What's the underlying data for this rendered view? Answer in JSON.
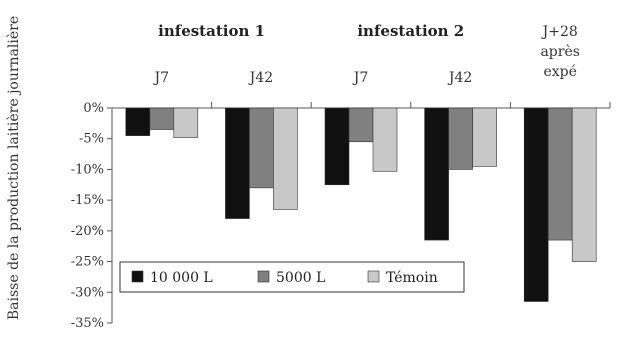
{
  "chart_data": {
    "type": "bar",
    "ylabel": "Baisse de la production laitière journalière",
    "ylim": [
      -35,
      0
    ],
    "ytick_step": 5,
    "ytick_suffix": "%",
    "group_labels": [
      {
        "text": "infestation 1",
        "span": [
          0,
          1
        ]
      },
      {
        "text": "infestation 2",
        "span": [
          2,
          3
        ]
      }
    ],
    "categories": [
      {
        "lines": [
          "J7"
        ]
      },
      {
        "lines": [
          "J42"
        ]
      },
      {
        "lines": [
          "J7"
        ]
      },
      {
        "lines": [
          "J42"
        ]
      },
      {
        "lines": [
          "J+28",
          "après",
          "expé"
        ]
      }
    ],
    "series": [
      {
        "name": "10 000 L",
        "color": "#111111",
        "values": [
          -4.5,
          -18.0,
          -12.5,
          -21.5,
          -31.5
        ]
      },
      {
        "name": "5000 L",
        "color": "#808080",
        "values": [
          -3.5,
          -13.0,
          -5.5,
          -10.0,
          -21.5
        ]
      },
      {
        "name": "Témoin",
        "color": "#c8c8c8",
        "values": [
          -4.8,
          -16.5,
          -10.3,
          -9.5,
          -25.0
        ]
      }
    ],
    "legend_position": "bottom-left",
    "grid": false
  }
}
